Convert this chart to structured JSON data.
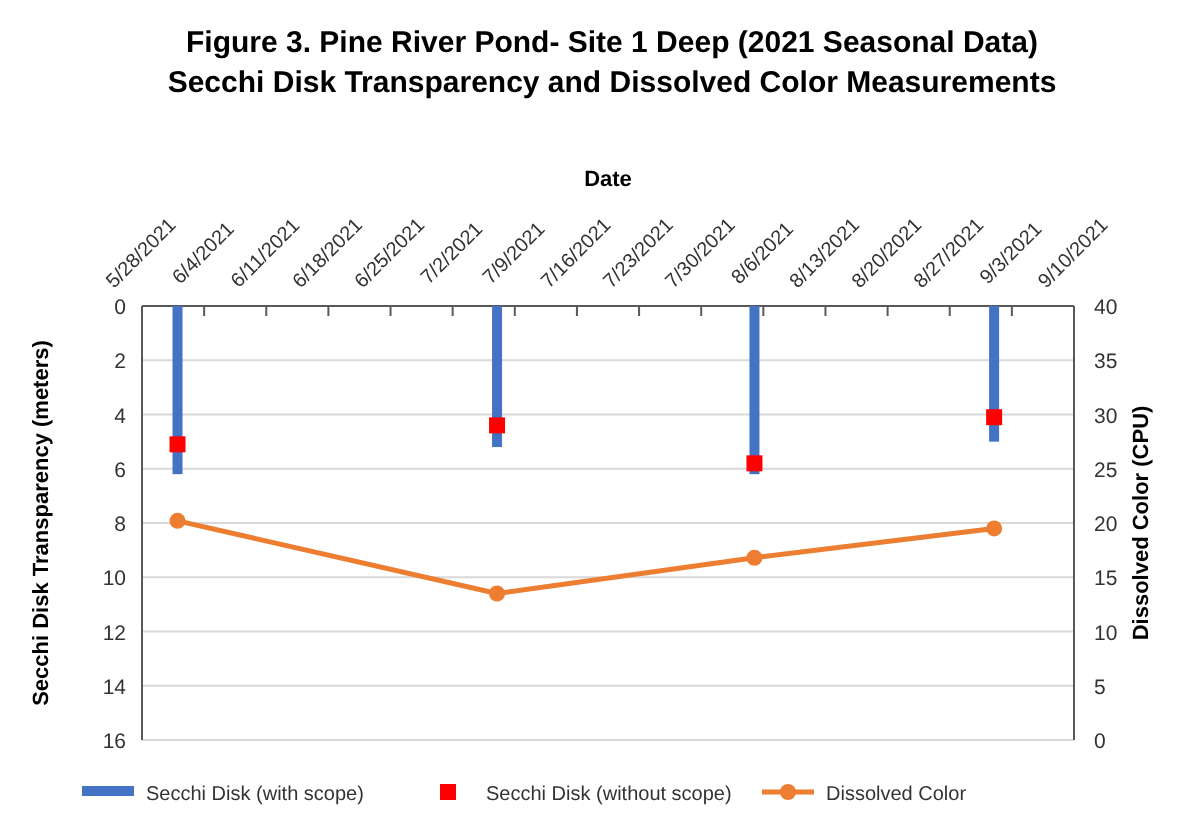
{
  "chart_data": {
    "type": "bar",
    "title": "Figure 3. Pine River Pond- Site 1 Deep (2021 Seasonal Data)",
    "subtitle": "Secchi Disk Transparency and Dissolved Color Measurements",
    "xlabel": "Date",
    "ylabel": "Secchi Disk Transparency (meters)",
    "y2label": "Dissolved  Color (CPU)",
    "x": [
      "2021-06-01",
      "2021-07-07",
      "2021-08-05",
      "2021-09-01"
    ],
    "series": [
      {
        "name": "Secchi Disk (with scope)",
        "color": "#4472c4",
        "values": [
          6.2,
          5.2,
          6.2,
          5.0
        ]
      },
      {
        "name": "Secchi Disk (without scope)",
        "type": "scatter",
        "marker": "square",
        "color": "#ff0000",
        "values": [
          5.1,
          4.4,
          5.8,
          4.1
        ]
      },
      {
        "name": "Dissolved Color",
        "type": "line",
        "axis": "y2",
        "marker": "circle",
        "color": "#ed7d31",
        "values": [
          20.2,
          13.5,
          16.8,
          19.5
        ]
      }
    ],
    "xlim": [
      "2021-05-28",
      "2021-09-10"
    ],
    "xticks": [
      {
        "value": "2021-05-28",
        "label": "5/28/2021"
      },
      {
        "value": "2021-06-04",
        "label": "6/4/2021"
      },
      {
        "value": "2021-06-11",
        "label": "6/11/2021"
      },
      {
        "value": "2021-06-18",
        "label": "6/18/2021"
      },
      {
        "value": "2021-06-25",
        "label": "6/25/2021"
      },
      {
        "value": "2021-07-02",
        "label": "7/2/2021"
      },
      {
        "value": "2021-07-09",
        "label": "7/9/2021"
      },
      {
        "value": "2021-07-16",
        "label": "7/16/2021"
      },
      {
        "value": "2021-07-23",
        "label": "7/23/2021"
      },
      {
        "value": "2021-07-30",
        "label": "7/30/2021"
      },
      {
        "value": "2021-08-06",
        "label": "8/6/2021"
      },
      {
        "value": "2021-08-13",
        "label": "8/13/2021"
      },
      {
        "value": "2021-08-20",
        "label": "8/20/2021"
      },
      {
        "value": "2021-08-27",
        "label": "8/27/2021"
      },
      {
        "value": "2021-09-03",
        "label": "9/3/2021"
      },
      {
        "value": "2021-09-10",
        "label": "9/10/2021"
      }
    ],
    "ylim": [
      16,
      0
    ],
    "yticks": [
      0,
      2,
      4,
      6,
      8,
      10,
      12,
      14,
      16
    ],
    "y2lim": [
      0,
      40
    ],
    "y2ticks": [
      0,
      5,
      10,
      15,
      20,
      25,
      30,
      35,
      40
    ],
    "grid": "y",
    "legend": "bottom"
  }
}
